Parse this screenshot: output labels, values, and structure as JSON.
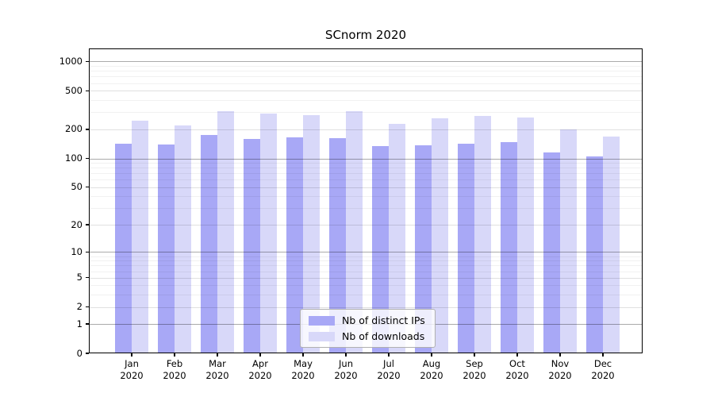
{
  "figure": {
    "title": "SCnorm 2020"
  },
  "chart_data": {
    "type": "bar",
    "title": "SCnorm 2020",
    "categories": [
      "Jan 2020",
      "Feb 2020",
      "Mar 2020",
      "Apr 2020",
      "May 2020",
      "Jun 2020",
      "Jul 2020",
      "Aug 2020",
      "Sep 2020",
      "Oct 2020",
      "Nov 2020",
      "Dec 2020"
    ],
    "series": [
      {
        "name": "Nb of distinct IPs",
        "color": "#a8a8f6",
        "values": [
          142,
          139,
          175,
          159,
          165,
          163,
          133,
          138,
          143,
          147,
          116,
          104
        ]
      },
      {
        "name": "Nb of downloads",
        "color": "#d8d8f9",
        "values": [
          245,
          219,
          310,
          292,
          278,
          310,
          229,
          261,
          277,
          266,
          200,
          170
        ]
      }
    ],
    "xlabel": "",
    "ylabel": "",
    "yscale": "log1p",
    "ylim": [
      0,
      1320
    ],
    "yticks": [
      0,
      1,
      2,
      5,
      10,
      20,
      50,
      100,
      200,
      500,
      1000
    ],
    "minor_gridline_values": [
      3,
      4,
      6,
      7,
      8,
      9,
      30,
      40,
      60,
      70,
      80,
      90,
      300,
      400,
      600,
      700,
      800,
      900
    ],
    "grid": "on",
    "legend_position": "lower-center-inside",
    "colors": {
      "major_gridline": "rgba(0,0,0,0.33)",
      "mid_gridline": "rgba(0,0,0,0.12)",
      "minor_gridline": "rgba(0,0,0,0.055)",
      "axis": "#000000",
      "background": "#ffffff"
    }
  }
}
